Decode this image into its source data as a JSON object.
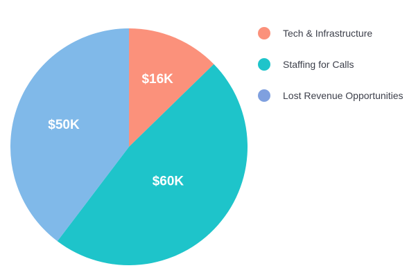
{
  "chart_data": {
    "type": "pie",
    "title": "",
    "unit": "$K",
    "slices": [
      {
        "name": "Tech & Infrastructure",
        "value": 16,
        "label": "$16K",
        "color": "#fb917b"
      },
      {
        "name": "Staffing for Calls",
        "value": 60,
        "label": "$60K",
        "color": "#1ec4ca"
      },
      {
        "name": "Lost Revenue Opportunities",
        "value": 50,
        "label": "$50K",
        "color": "#80b9e9"
      }
    ],
    "legend": {
      "placement": "right",
      "entries": [
        {
          "label": "Tech & Infrastructure",
          "color": "#fb917b"
        },
        {
          "label": "Staffing for Calls",
          "color": "#1ec4ca"
        },
        {
          "label": "Lost Revenue Opportunities",
          "color": "#7fa0df"
        }
      ]
    }
  }
}
